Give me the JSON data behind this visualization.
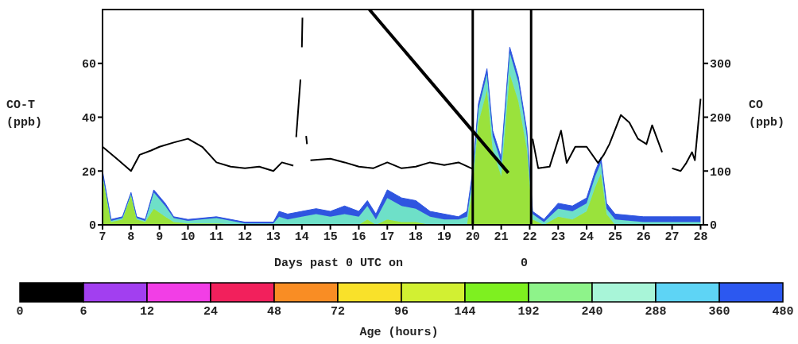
{
  "chart_data": {
    "type": "area",
    "ylabel": "CO-T (ppb)",
    "y2label": "CO (ppb)",
    "xlabel": "Days past 0 UTC on",
    "annotations": [
      "0",
      "0",
      "6",
      "12",
      "24",
      "48",
      "72",
      "96",
      "144",
      "192",
      "240",
      "288",
      "360",
      "480",
      "Age (hours)"
    ],
    "xlim": [
      7,
      28.1
    ],
    "xticks": [
      7,
      8,
      9,
      10,
      11,
      12,
      13,
      14,
      15,
      16,
      17,
      18,
      19,
      20,
      21,
      22,
      23,
      24,
      25,
      26,
      27,
      28
    ],
    "ylim": [
      0,
      80
    ],
    "yticks": [
      0,
      20,
      40,
      60
    ],
    "y2lim": [
      0,
      400
    ],
    "y2ticks": [
      0,
      100,
      200,
      300
    ],
    "grid": false,
    "stacked": true,
    "ref_lines": [
      {
        "axis": "x",
        "value": 20,
        "color": "#000000"
      },
      {
        "axis": "x",
        "value": 22.05,
        "color": "#000000"
      }
    ],
    "x": [
      7,
      7.3,
      7.7,
      8,
      8.2,
      8.5,
      8.8,
      9.2,
      9.5,
      10,
      11,
      12,
      13,
      13.2,
      13.5,
      14,
      14.5,
      15,
      15.5,
      16,
      16.3,
      16.6,
      17,
      17.5,
      18,
      18.5,
      19,
      19.5,
      19.8,
      20,
      20.2,
      20.5,
      20.7,
      21,
      21.3,
      21.6,
      21.9,
      22.1,
      22.5,
      23,
      23.5,
      24,
      24.3,
      24.5,
      24.7,
      25,
      26,
      27,
      28
    ],
    "series": [
      {
        "color": "#9ae23c",
        "values": [
          18,
          1,
          2,
          11,
          2,
          1,
          6,
          3,
          1,
          0.5,
          0.5,
          0,
          0,
          0,
          0,
          0,
          0,
          0,
          0,
          0,
          2,
          0,
          2,
          1,
          1,
          0,
          0,
          0,
          0,
          15,
          38,
          50,
          28,
          18,
          56,
          46,
          28,
          2,
          0,
          3,
          2,
          5,
          14,
          19,
          4,
          0,
          0,
          0,
          0
        ]
      },
      {
        "color": "#6ee0c8",
        "values": [
          1,
          0.5,
          0.5,
          0.5,
          0.5,
          0.5,
          6,
          4,
          1.5,
          1,
          2,
          0.5,
          0.5,
          3,
          2,
          3,
          4,
          3,
          4,
          3,
          5,
          2,
          8,
          6,
          5,
          3,
          2,
          2,
          3,
          3,
          5,
          6,
          5,
          5,
          8,
          7,
          5,
          2,
          1,
          3,
          3,
          3,
          4,
          4,
          2,
          2,
          1,
          1,
          1
        ]
      },
      {
        "color": "#2f55e0",
        "values": [
          1,
          0.5,
          0.5,
          0.5,
          0.5,
          0.5,
          1,
          1,
          0.5,
          0.5,
          0.5,
          0.5,
          0.5,
          2,
          2,
          2,
          2,
          2,
          3,
          2,
          2,
          2,
          3,
          3,
          3,
          2,
          2,
          1,
          2,
          2,
          2,
          2,
          2,
          2,
          2,
          2,
          2,
          1,
          1,
          2,
          2,
          2,
          2,
          2,
          2,
          2,
          2,
          2,
          2
        ]
      },
      {
        "type": "line",
        "color": "#000000",
        "x": [
          16.37,
          21.25
        ],
        "values": [
          80,
          19.3
        ]
      },
      {
        "type": "line",
        "color": "#000000",
        "axis": "y2",
        "x": [
          7,
          7.5,
          8,
          8.3,
          8.7,
          9,
          9.5,
          10,
          10.5,
          11,
          11.5,
          12,
          12.5,
          13,
          13.3,
          13.7,
          13.75,
          13.8,
          13.95,
          13.97,
          14.0,
          14.02,
          14.05,
          14.15,
          14.18,
          14.2,
          14.3,
          15,
          15.5,
          16,
          16.5,
          17,
          17.5,
          18,
          18.5,
          19,
          19.5,
          20,
          20.1,
          22.1,
          22.3,
          22.7,
          23.1,
          23.3,
          23.6,
          24,
          24.4,
          24.6,
          24.8,
          25.2,
          25.5,
          25.8,
          26.1,
          26.3,
          26.65,
          26.8,
          27,
          27.3,
          27.5,
          27.7,
          27.8,
          28
        ],
        "values": [
          145,
          123,
          100,
          130,
          138,
          145,
          153,
          160,
          145,
          116,
          108,
          105,
          108,
          100,
          116,
          110,
          null,
          163,
          270,
          null,
          330,
          385,
          null,
          165,
          150,
          null,
          120,
          123,
          116,
          108,
          105,
          116,
          105,
          108,
          116,
          111,
          116,
          104,
          null,
          160,
          105,
          108,
          175,
          115,
          145,
          145,
          115,
          130,
          150,
          204,
          190,
          160,
          150,
          185,
          135,
          null,
          105,
          100,
          115,
          135,
          120,
          234
        ]
      }
    ]
  }
}
